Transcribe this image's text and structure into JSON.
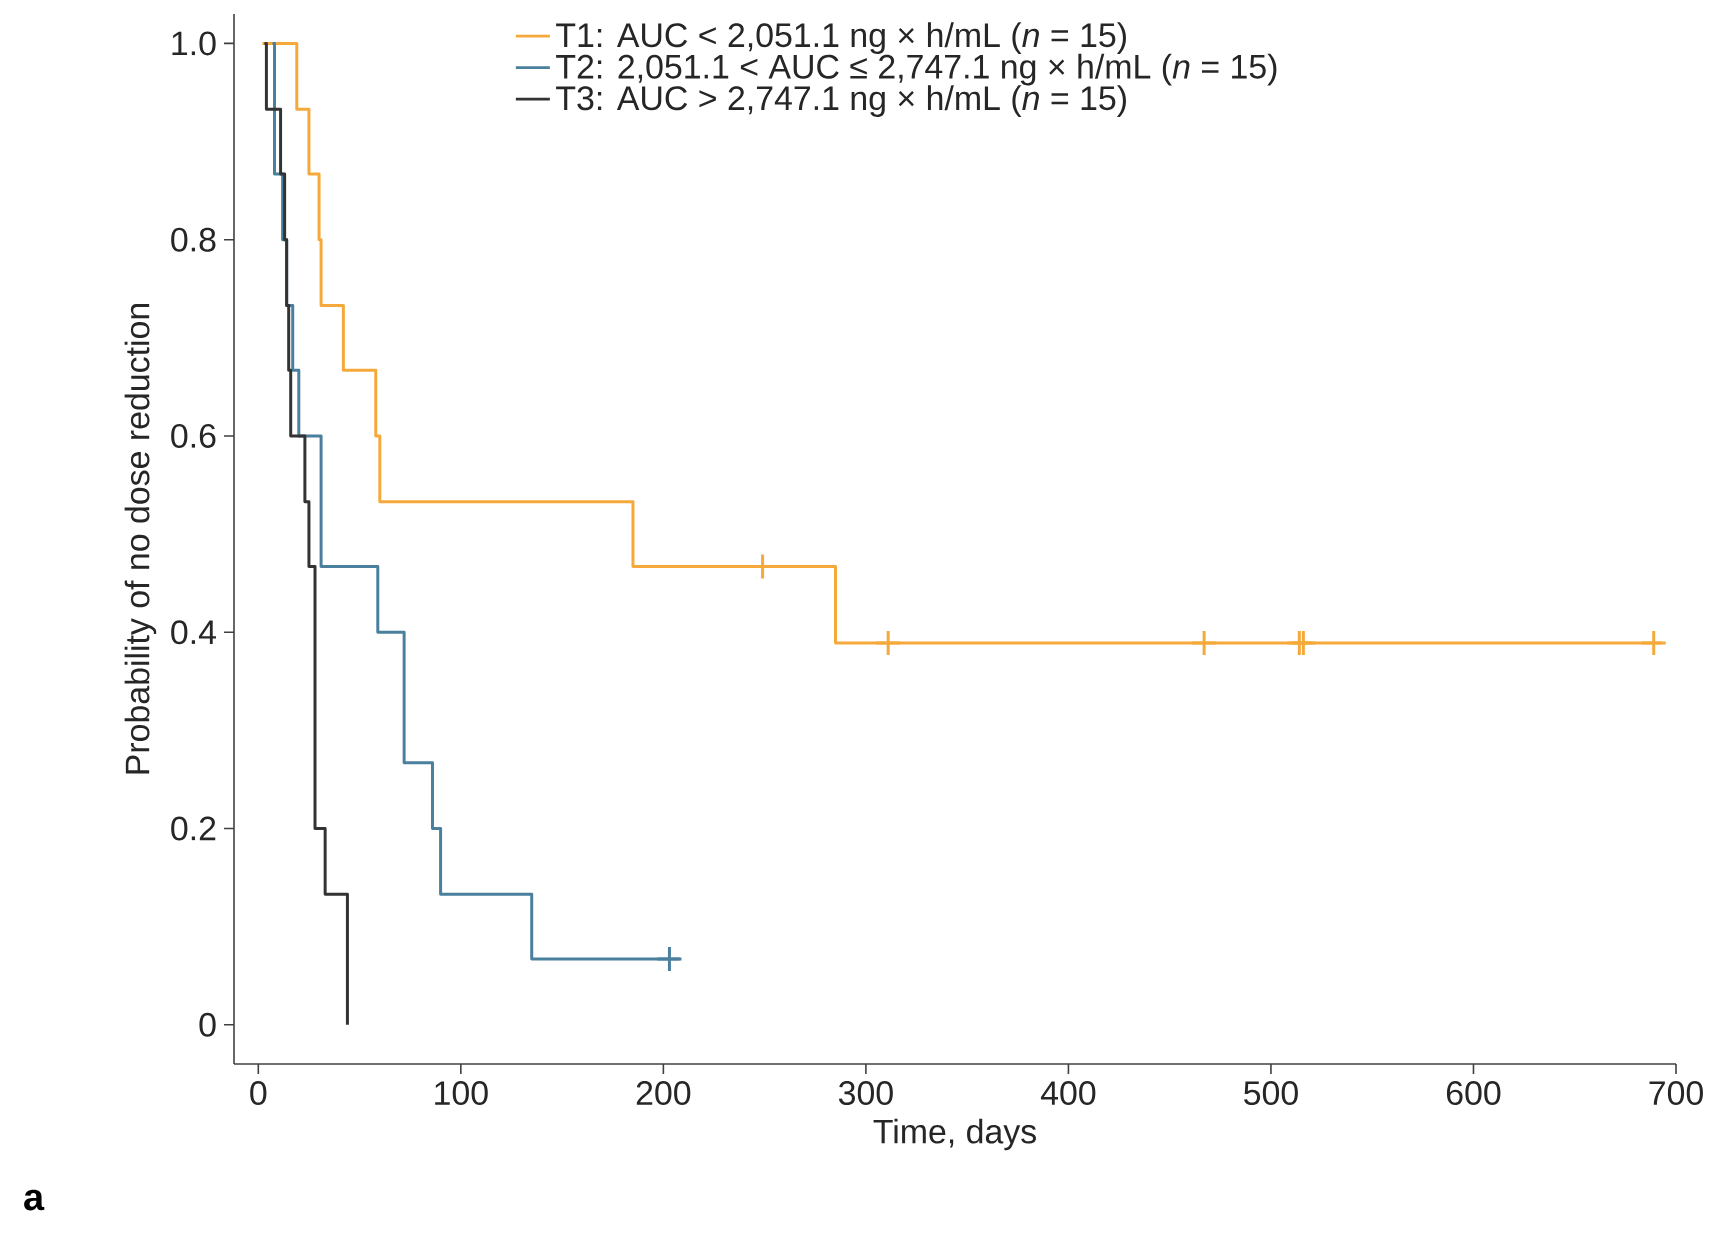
{
  "chart_data": {
    "type": "step",
    "xlabel": "Time, days",
    "ylabel": "Probability of no dose reduction",
    "annotations": [
      "a"
    ],
    "xlim": [
      -12,
      700
    ],
    "ylim": [
      -0.04,
      1.03
    ],
    "xticks": [
      0,
      100,
      200,
      300,
      400,
      500,
      600,
      700
    ],
    "yticks": [
      {
        "value": 0,
        "label": "0"
      },
      {
        "value": 0.2,
        "label": "0.2"
      },
      {
        "value": 0.4,
        "label": "0.4"
      },
      {
        "value": 0.6,
        "label": "0.6"
      },
      {
        "value": 0.8,
        "label": "0.8"
      },
      {
        "value": 1.0,
        "label": "1.0"
      }
    ],
    "legend": "top right",
    "grid": false,
    "series": [
      {
        "name": "T1: AUC < 2,051.1 ng × h/mL (*n* = 15)",
        "color": "#f5a93b",
        "x": [
          2,
          19,
          25,
          30,
          31,
          42,
          58,
          60,
          185,
          285,
          693
        ],
        "values": [
          1.0,
          0.933,
          0.867,
          0.8,
          0.733,
          0.667,
          0.6,
          0.533,
          0.467,
          0.389,
          0.389
        ]
      },
      {
        "name": "T2: 2,051.1 < AUC ≤ 2,747.1 ng × h/mL (*n* = 15)",
        "color": "#4a7f9e",
        "x": [
          7,
          8,
          12,
          14,
          17,
          20,
          31,
          59,
          72,
          86,
          90,
          135,
          208
        ],
        "values": [
          1.0,
          0.867,
          0.8,
          0.733,
          0.667,
          0.6,
          0.467,
          0.4,
          0.267,
          0.2,
          0.133,
          0.067,
          0.067
        ]
      },
      {
        "name": "T3: AUC > 2,747.1 ng × h/mL (*n* = 15)",
        "color": "#333333",
        "x": [
          3,
          4,
          11,
          13,
          14,
          15,
          16,
          23,
          25,
          28,
          33,
          44
        ],
        "values": [
          1.0,
          0.933,
          0.867,
          0.8,
          0.733,
          0.667,
          0.6,
          0.533,
          0.467,
          0.2,
          0.133,
          0
        ]
      },
      {
        "type": "scatter",
        "marker": "cross",
        "color": "#f5a93b",
        "x": [
          249,
          311,
          467,
          514,
          516,
          689
        ],
        "values": [
          0.467,
          0.389,
          0.389,
          0.389,
          0.389,
          0.389
        ]
      },
      {
        "type": "scatter",
        "marker": "cross",
        "color": "#4a7f9e",
        "x": [
          203
        ],
        "values": [
          0.067
        ]
      }
    ]
  }
}
